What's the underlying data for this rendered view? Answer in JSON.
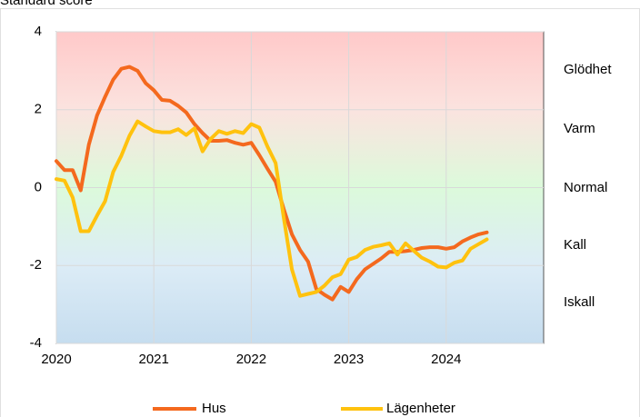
{
  "chart_data": {
    "type": "line",
    "title": "Standard score",
    "x": [
      2020.0,
      2020.083,
      2020.167,
      2020.25,
      2020.333,
      2020.417,
      2020.5,
      2020.583,
      2020.667,
      2020.75,
      2020.833,
      2020.917,
      2021.0,
      2021.083,
      2021.167,
      2021.25,
      2021.333,
      2021.417,
      2021.5,
      2021.583,
      2021.667,
      2021.75,
      2021.833,
      2021.917,
      2022.0,
      2022.083,
      2022.167,
      2022.25,
      2022.333,
      2022.417,
      2022.5,
      2022.583,
      2022.667,
      2022.75,
      2022.833,
      2022.917,
      2023.0,
      2023.083,
      2023.167,
      2023.25,
      2023.333,
      2023.417,
      2023.5,
      2023.583,
      2023.667,
      2023.75,
      2023.833,
      2023.917,
      2024.0,
      2024.083,
      2024.167,
      2024.25,
      2024.333,
      2024.417
    ],
    "series": [
      {
        "name": "Hus",
        "color": "#f4691e",
        "values": [
          0.68,
          0.45,
          0.45,
          -0.07,
          1.1,
          1.85,
          2.33,
          2.77,
          3.05,
          3.1,
          3.0,
          2.68,
          2.5,
          2.25,
          2.23,
          2.1,
          1.93,
          1.63,
          1.4,
          1.2,
          1.2,
          1.22,
          1.15,
          1.1,
          1.15,
          0.83,
          0.48,
          0.15,
          -0.55,
          -1.2,
          -1.6,
          -1.9,
          -2.6,
          -2.75,
          -2.87,
          -2.55,
          -2.68,
          -2.35,
          -2.1,
          -1.96,
          -1.82,
          -1.65,
          -1.65,
          -1.63,
          -1.6,
          -1.55,
          -1.53,
          -1.53,
          -1.57,
          -1.53,
          -1.38,
          -1.28,
          -1.2,
          -1.15
        ]
      },
      {
        "name": "Lägenheter",
        "color": "#ffc20e",
        "values": [
          0.22,
          0.18,
          -0.25,
          -1.12,
          -1.12,
          -0.72,
          -0.35,
          0.4,
          0.82,
          1.33,
          1.7,
          1.57,
          1.45,
          1.42,
          1.42,
          1.5,
          1.35,
          1.52,
          0.93,
          1.25,
          1.45,
          1.38,
          1.45,
          1.4,
          1.63,
          1.54,
          1.05,
          0.63,
          -0.77,
          -2.1,
          -2.78,
          -2.73,
          -2.68,
          -2.52,
          -2.3,
          -2.22,
          -1.85,
          -1.78,
          -1.6,
          -1.52,
          -1.48,
          -1.43,
          -1.72,
          -1.43,
          -1.62,
          -1.8,
          -1.9,
          -2.03,
          -2.05,
          -1.93,
          -1.87,
          -1.57,
          -1.45,
          -1.33
        ]
      }
    ],
    "xlim": [
      2020,
      2025
    ],
    "xticks": [
      2020,
      2021,
      2022,
      2023,
      2024
    ],
    "ylim": [
      -4,
      4
    ],
    "yticks": [
      -4,
      -2,
      0,
      2,
      4
    ],
    "grid": true,
    "annotations": [
      "Glödhet",
      "Varm",
      "Normal",
      "Kall",
      "Iskall"
    ]
  }
}
